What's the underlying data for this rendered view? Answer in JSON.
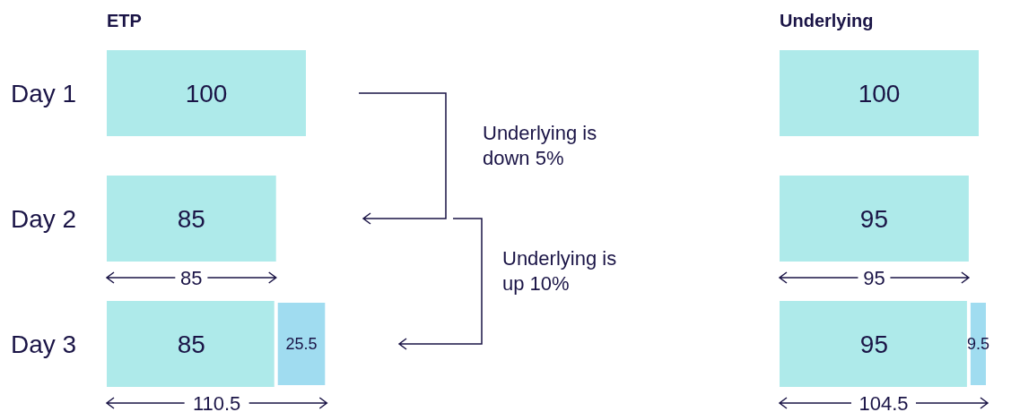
{
  "chart_data": [
    {
      "type": "bar",
      "orientation": "horizontal",
      "stacked": true,
      "title": "ETP",
      "categories": [
        "Day 1",
        "Day 2",
        "Day 3"
      ],
      "data_labels": true,
      "tick_labels": "y",
      "series": [
        {
          "color": "#aeeaea",
          "values": [
            100,
            85,
            85
          ]
        },
        {
          "color": "#a0dcf0",
          "values": [
            null,
            null,
            25.5
          ]
        }
      ],
      "annotations": [
        "85",
        "110.5",
        "Underlying is down 5%",
        "Underlying is up 10%"
      ]
    },
    {
      "type": "bar",
      "orientation": "horizontal",
      "stacked": true,
      "title": "Underlying",
      "categories": [
        null,
        null,
        null
      ],
      "data_labels": true,
      "series": [
        {
          "color": "#aeeaea",
          "values": [
            100,
            95,
            95
          ]
        },
        {
          "color": "#a0dcf0",
          "values": [
            null,
            null,
            9.5
          ]
        }
      ],
      "annotations": [
        "95",
        "104.5"
      ]
    }
  ]
}
